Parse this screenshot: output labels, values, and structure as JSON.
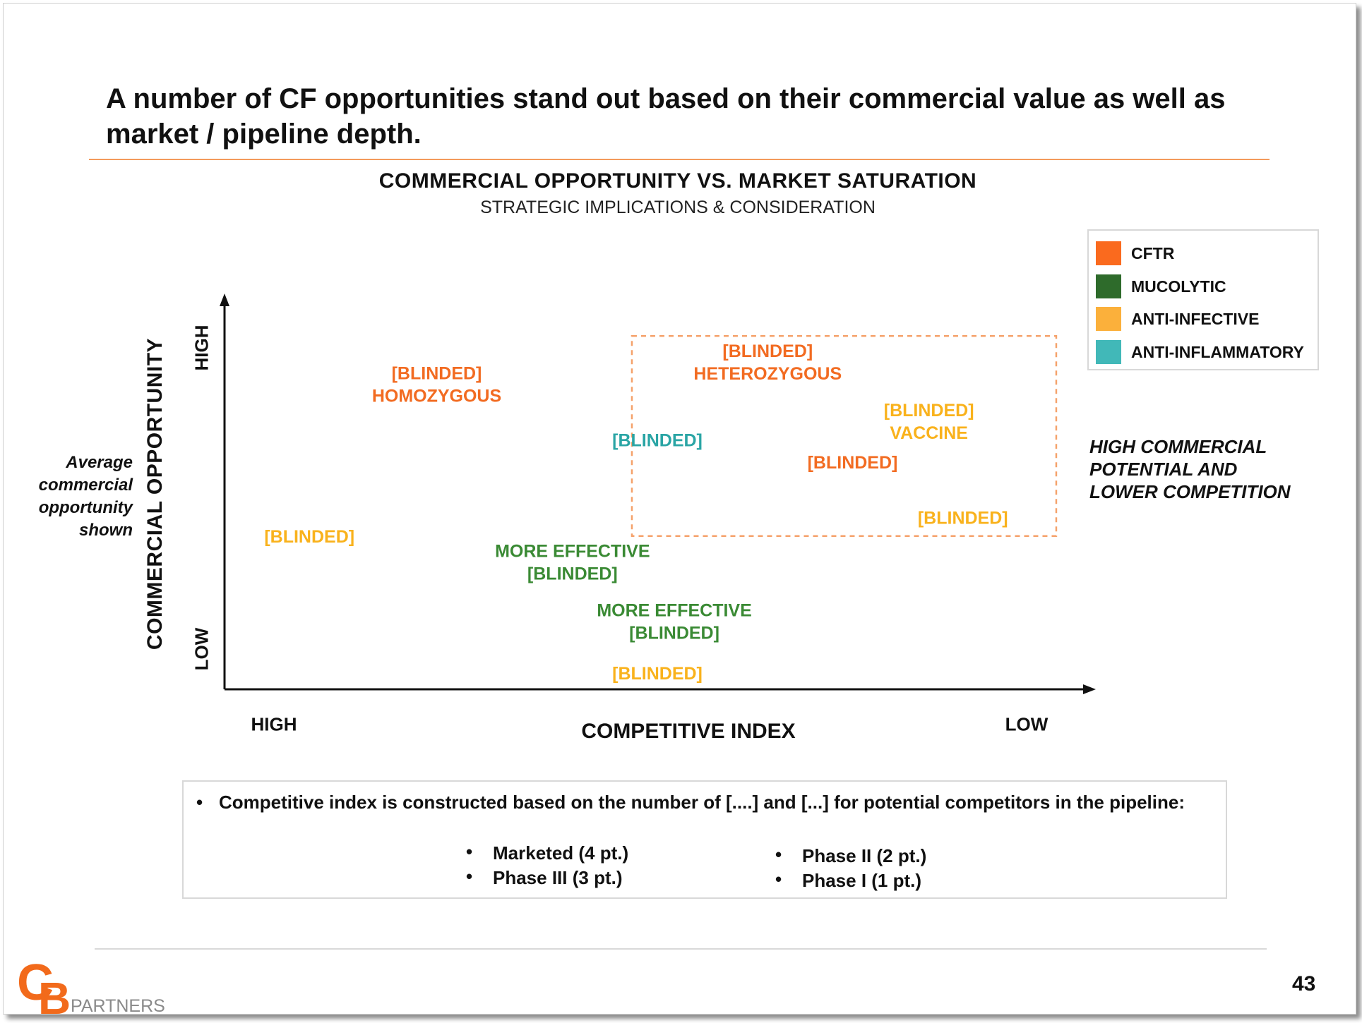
{
  "slide": {
    "title": "A number of CF opportunities stand out based on their commercial value as well as market / pipeline depth.",
    "page_number": "43"
  },
  "logo": {
    "letters": "CB",
    "word": "PARTNERS",
    "color": "#f26a1b"
  },
  "colors": {
    "CFTR": "#fa6a1e",
    "MUCOLYTIC": "#2e6b2b",
    "ANTI-INFECTIVE": "#fbb03b",
    "ANTI-INFLAMMATORY": "#41b8b8",
    "label_green": "#3a8a34",
    "label_teal": "#2aa5a5",
    "label_yellow": "#f9b21c",
    "label_orange": "#f26b21",
    "highlight_border": "#f5a26b"
  },
  "chart_data": {
    "type": "scatter",
    "title": "COMMERCIAL OPPORTUNITY VS. MARKET SATURATION",
    "subtitle": "STRATEGIC  IMPLICATIONS  & CONSIDERATION",
    "x_axis": {
      "title": "COMPETITIVE INDEX",
      "tick_labels": [
        "HIGH",
        "LOW"
      ],
      "direction": "high-to-low"
    },
    "y_axis": {
      "title": "COMMERCIAL  OPPORTUNITY",
      "tick_labels": [
        "LOW",
        "HIGH"
      ]
    },
    "xlim": [
      0,
      1
    ],
    "ylim": [
      0,
      1
    ],
    "legend": {
      "position": "top-right",
      "entries": [
        "CFTR",
        "MUCOLYTIC",
        "ANTI-INFECTIVE",
        "ANTI-INFLAMMATORY"
      ]
    },
    "points": [
      {
        "lines": [
          "[BLINDED]",
          "HOMOZYGOUS"
        ],
        "category": "CFTR",
        "x": 0.25,
        "y": 0.82
      },
      {
        "lines": [
          "[BLINDED]",
          "HETEROZYGOUS"
        ],
        "category": "CFTR",
        "x": 0.64,
        "y": 0.88
      },
      {
        "lines": [
          "[BLINDED]",
          "VACCINE"
        ],
        "category": "ANTI-INFECTIVE",
        "x": 0.83,
        "y": 0.72
      },
      {
        "lines": [
          "[BLINDED]"
        ],
        "category": "ANTI-INFLAMMATORY",
        "x": 0.51,
        "y": 0.67
      },
      {
        "lines": [
          "[BLINDED]"
        ],
        "category": "CFTR",
        "x": 0.74,
        "y": 0.61
      },
      {
        "lines": [
          "[BLINDED]"
        ],
        "category": "ANTI-INFECTIVE",
        "x": 0.87,
        "y": 0.46
      },
      {
        "lines": [
          "[BLINDED]"
        ],
        "category": "ANTI-INFECTIVE",
        "x": 0.1,
        "y": 0.41
      },
      {
        "lines": [
          "MORE EFFECTIVE",
          "[BLINDED]"
        ],
        "category": "MUCOLYTIC",
        "x": 0.41,
        "y": 0.34
      },
      {
        "lines": [
          "MORE EFFECTIVE",
          "[BLINDED]"
        ],
        "category": "MUCOLYTIC",
        "x": 0.53,
        "y": 0.18
      },
      {
        "lines": [
          "[BLINDED]"
        ],
        "category": "ANTI-INFECTIVE",
        "x": 0.51,
        "y": 0.04
      }
    ],
    "highlight_region": {
      "x": [
        0.48,
        0.98
      ],
      "y": [
        0.41,
        0.95
      ],
      "style": "dashed",
      "label": "HIGH COMMERCIAL POTENTIAL AND LOWER COMPETITION"
    },
    "annotations": {
      "average_line_note": "Average commercial opportunity shown"
    }
  },
  "notes": {
    "main": "Competitive index is constructed based on the number of [....] and [...] for potential competitors in the pipeline:",
    "scores_left": [
      "Marketed (4 pt.)",
      "Phase III (3 pt.)"
    ],
    "scores_right": [
      "Phase II (2 pt.)",
      "Phase I (1 pt.)"
    ]
  }
}
